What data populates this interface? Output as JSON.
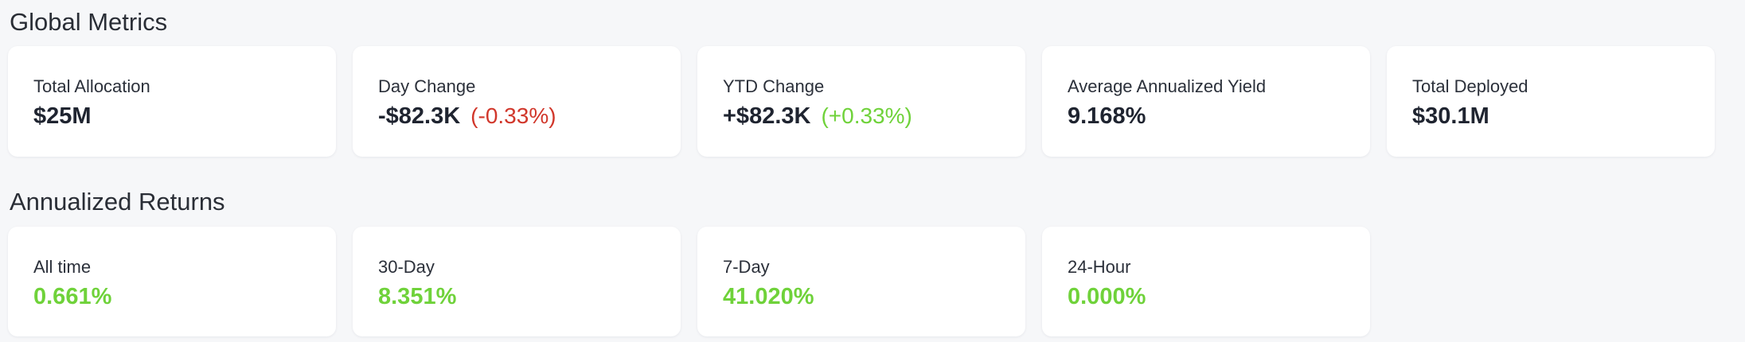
{
  "global_metrics": {
    "title": "Global Metrics",
    "cards": [
      {
        "label": "Total Allocation",
        "value": "$25M",
        "delta": ""
      },
      {
        "label": "Day Change",
        "value": "-$82.3K",
        "delta": "(-0.33%)"
      },
      {
        "label": "YTD Change",
        "value": "+$82.3K",
        "delta": "(+0.33%)"
      },
      {
        "label": "Average Annualized Yield",
        "value": "9.168%",
        "delta": ""
      },
      {
        "label": "Total Deployed",
        "value": "$30.1M",
        "delta": ""
      }
    ]
  },
  "annualized_returns": {
    "title": "Annualized Returns",
    "cards": [
      {
        "label": "All time",
        "value": "0.661%"
      },
      {
        "label": "30-Day",
        "value": "8.351%"
      },
      {
        "label": "7-Day",
        "value": "41.020%"
      },
      {
        "label": "24-Hour",
        "value": "0.000%"
      }
    ]
  },
  "colors": {
    "background": "#f6f7f9",
    "card": "#ffffff",
    "positive": "#6fd23a",
    "negative": "#d1372b",
    "text": "#1f2430"
  }
}
